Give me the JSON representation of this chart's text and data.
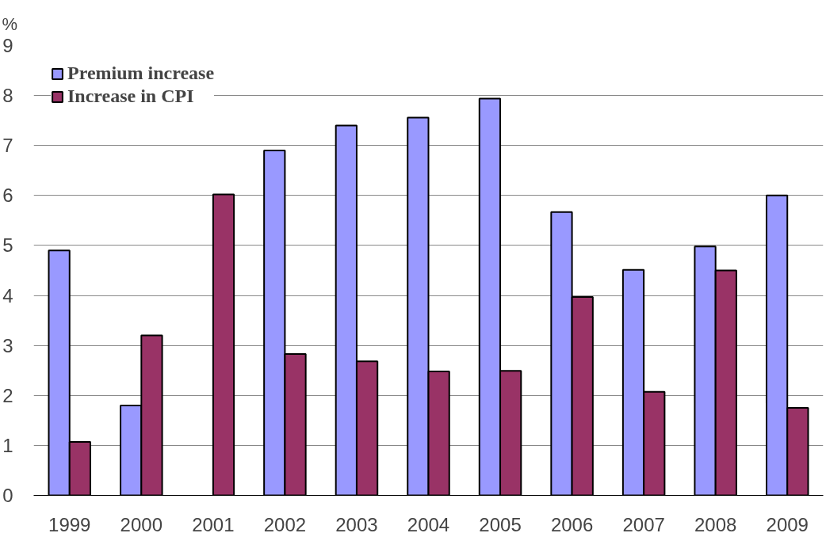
{
  "chart_data": {
    "type": "bar",
    "ylabel": "%",
    "categories": [
      "1999",
      "2000",
      "2001",
      "2002",
      "2003",
      "2004",
      "2005",
      "2006",
      "2007",
      "2008",
      "2009"
    ],
    "series": [
      {
        "name": "Premium increase",
        "color": "#9999ff",
        "values": [
          4.9,
          1.8,
          null,
          6.9,
          7.4,
          7.56,
          7.94,
          5.67,
          4.51,
          4.98,
          6.0
        ]
      },
      {
        "name": "Increase in CPI",
        "color": "#993366",
        "values": [
          1.07,
          3.2,
          6.02,
          2.83,
          2.68,
          2.48,
          2.49,
          3.97,
          2.07,
          4.5,
          1.75
        ]
      }
    ],
    "ylim": [
      0,
      9
    ],
    "yticks": [
      0,
      1,
      2,
      3,
      4,
      5,
      6,
      7,
      8,
      9
    ],
    "grid": "y",
    "legend": "top left"
  }
}
